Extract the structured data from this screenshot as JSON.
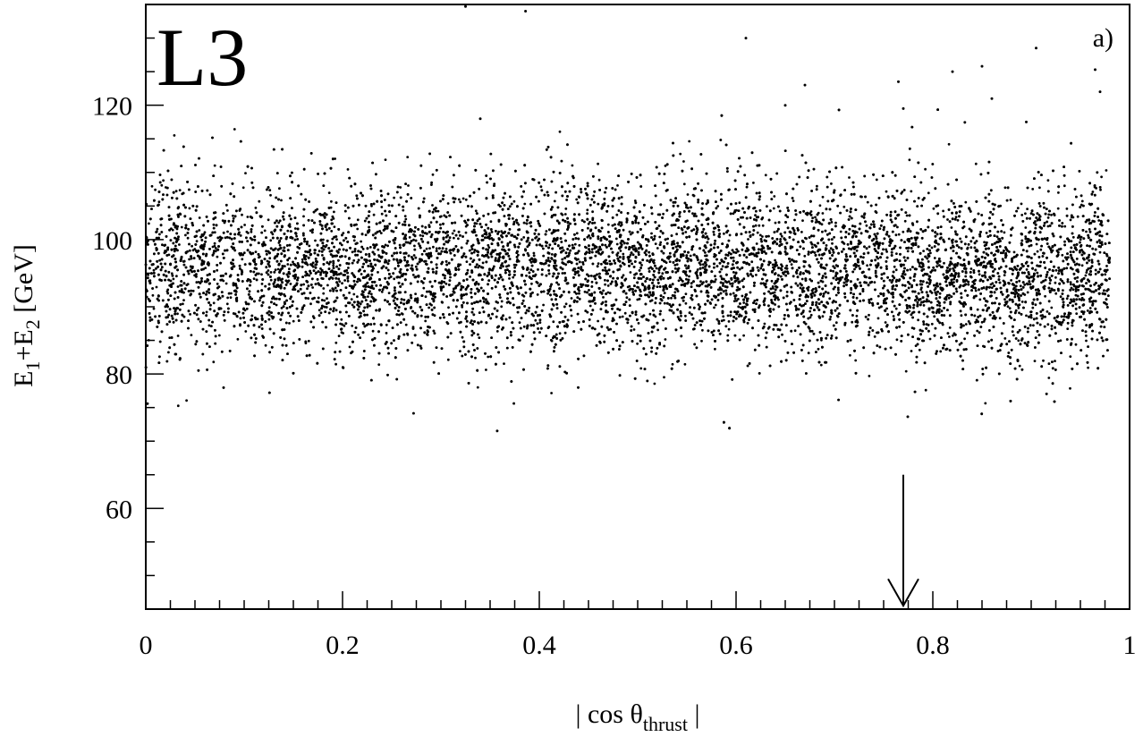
{
  "chart_data": {
    "type": "scatter",
    "title": "",
    "logo_text": "L3",
    "panel_label": "a)",
    "xlabel": {
      "prefix": "| cos θ",
      "subscript": "thrust",
      "suffix": " |"
    },
    "ylabel": {
      "e1": "E",
      "sub1": "1",
      "plus": "+E",
      "sub2": "2",
      "unit": " [GeV]"
    },
    "xlim": [
      0,
      1
    ],
    "ylim": [
      45,
      135
    ],
    "x_ticks": [
      {
        "value": 0,
        "label": "0"
      },
      {
        "value": 0.2,
        "label": "0.2"
      },
      {
        "value": 0.4,
        "label": "0.4"
      },
      {
        "value": 0.6,
        "label": "0.6"
      },
      {
        "value": 0.8,
        "label": "0.8"
      },
      {
        "value": 1,
        "label": "1"
      }
    ],
    "y_ticks": [
      {
        "value": 60,
        "label": "60"
      },
      {
        "value": 80,
        "label": "80"
      },
      {
        "value": 100,
        "label": "100"
      },
      {
        "value": 120,
        "label": "120"
      }
    ],
    "x_minor_step": 0.025,
    "y_minor_step": 5,
    "grid": false,
    "legend": "none",
    "marker_color": "#000000",
    "cut_arrow": {
      "x": 0.77,
      "y_from": 65,
      "y_to": 45.5
    },
    "distribution": {
      "description_of_points": "dense band of events, centered near 96 GeV with spread about 6 GeV, spanning 0 to 0.98 in |cos θ_thrust|; sparse outliers between 70 and 135 GeV",
      "x_range": [
        0,
        0.98
      ],
      "y_center": 96,
      "y_spread": 6,
      "y_min": 70,
      "y_max": 135
    },
    "outlier_points": [
      {
        "x": 0.325,
        "y": 134.7
      },
      {
        "x": 0.386,
        "y": 134.0
      },
      {
        "x": 0.61,
        "y": 130.0
      },
      {
        "x": 0.765,
        "y": 123.5
      },
      {
        "x": 0.82,
        "y": 125.0
      },
      {
        "x": 0.85,
        "y": 125.8
      },
      {
        "x": 0.905,
        "y": 128.5
      },
      {
        "x": 0.965,
        "y": 125.3
      },
      {
        "x": 0.67,
        "y": 123.0
      },
      {
        "x": 0.97,
        "y": 122.0
      },
      {
        "x": 0.34,
        "y": 118.0
      },
      {
        "x": 0.77,
        "y": 119.5
      },
      {
        "x": 0.65,
        "y": 120.0
      },
      {
        "x": 0.895,
        "y": 117.5
      },
      {
        "x": 0.86,
        "y": 121.0
      }
    ]
  }
}
